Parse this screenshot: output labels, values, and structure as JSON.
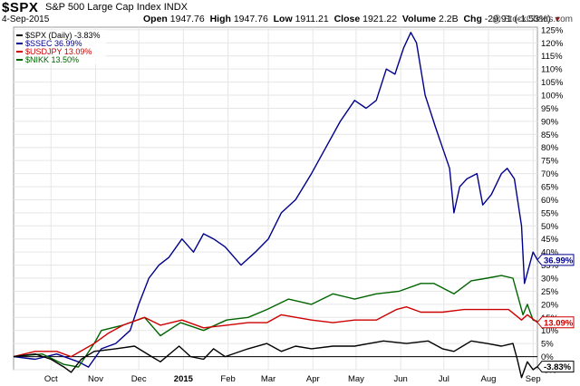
{
  "header": {
    "symbol": "$SPX",
    "name": "S&P 500 Large Cap Index",
    "exchange": "INDX",
    "date": "4-Sep-2015",
    "open_label": "Open",
    "open": "1947.76",
    "high_label": "High",
    "high": "1947.76",
    "low_label": "Low",
    "low": "1911.21",
    "close_label": "Close",
    "close": "1921.22",
    "volume_label": "Volume",
    "volume": "2.2B",
    "chg_label": "Chg",
    "chg": "-29.91 (-1.53%)",
    "logo": "@ StockCharts.com"
  },
  "legend": [
    {
      "label": "$SPX (Daily) -3.83%",
      "color": "#000000"
    },
    {
      "label": "$SSEC 36.99%",
      "color": "#00008b"
    },
    {
      "label": "$USDJPY 13.09%",
      "color": "#cc0000"
    },
    {
      "label": "$NIKK 13.50%",
      "color": "#006400"
    }
  ],
  "badges": [
    {
      "text": "36.99%",
      "value": 36.99,
      "color": "#00008b"
    },
    {
      "text": "13.09%",
      "value": 13.09,
      "color": "#cc0000"
    },
    {
      "text": "-3.83%",
      "value": -3.83,
      "color": "#000000"
    }
  ],
  "chart_data": {
    "type": "line",
    "ylim": [
      -5,
      126
    ],
    "y_ticks": [
      -5,
      0,
      5,
      10,
      15,
      20,
      25,
      30,
      35,
      40,
      45,
      50,
      55,
      60,
      65,
      70,
      75,
      80,
      85,
      90,
      95,
      100,
      105,
      110,
      115,
      120,
      125
    ],
    "x_range": [
      "2014-09-05",
      "2015-09-04"
    ],
    "x_ticks": [
      {
        "date": "2014-10-01",
        "label": "Oct",
        "bold": false
      },
      {
        "date": "2014-11-01",
        "label": "Nov",
        "bold": false
      },
      {
        "date": "2014-12-01",
        "label": "Dec",
        "bold": false
      },
      {
        "date": "2015-01-01",
        "label": "2015",
        "bold": true
      },
      {
        "date": "2015-02-01",
        "label": "Feb",
        "bold": false
      },
      {
        "date": "2015-03-01",
        "label": "Mar",
        "bold": false
      },
      {
        "date": "2015-04-01",
        "label": "Apr",
        "bold": false
      },
      {
        "date": "2015-05-01",
        "label": "May",
        "bold": false
      },
      {
        "date": "2015-06-01",
        "label": "Jun",
        "bold": false
      },
      {
        "date": "2015-07-01",
        "label": "Jul",
        "bold": false
      },
      {
        "date": "2015-08-01",
        "label": "Aug",
        "bold": false
      },
      {
        "date": "2015-09-01",
        "label": "Sep",
        "bold": false
      }
    ],
    "series": [
      {
        "name": "$SSEC",
        "color": "#00008b",
        "points": [
          [
            "2014-09-05",
            0
          ],
          [
            "2014-09-20",
            -1
          ],
          [
            "2014-10-05",
            1
          ],
          [
            "2014-10-20",
            -2
          ],
          [
            "2014-10-27",
            -4
          ],
          [
            "2014-11-05",
            3
          ],
          [
            "2014-11-15",
            5
          ],
          [
            "2014-11-25",
            10
          ],
          [
            "2014-12-01",
            20
          ],
          [
            "2014-12-08",
            30
          ],
          [
            "2014-12-15",
            35
          ],
          [
            "2014-12-22",
            38
          ],
          [
            "2014-12-31",
            45
          ],
          [
            "2015-01-08",
            40
          ],
          [
            "2015-01-15",
            47
          ],
          [
            "2015-01-22",
            45
          ],
          [
            "2015-01-30",
            42
          ],
          [
            "2015-02-10",
            35
          ],
          [
            "2015-02-20",
            40
          ],
          [
            "2015-03-01",
            45
          ],
          [
            "2015-03-10",
            55
          ],
          [
            "2015-03-20",
            60
          ],
          [
            "2015-03-31",
            70
          ],
          [
            "2015-04-10",
            80
          ],
          [
            "2015-04-20",
            90
          ],
          [
            "2015-04-30",
            98
          ],
          [
            "2015-05-08",
            95
          ],
          [
            "2015-05-15",
            98
          ],
          [
            "2015-05-22",
            110
          ],
          [
            "2015-05-28",
            108
          ],
          [
            "2015-06-03",
            118
          ],
          [
            "2015-06-08",
            124
          ],
          [
            "2015-06-12",
            120
          ],
          [
            "2015-06-18",
            100
          ],
          [
            "2015-06-25",
            88
          ],
          [
            "2015-06-30",
            80
          ],
          [
            "2015-07-05",
            72
          ],
          [
            "2015-07-08",
            55
          ],
          [
            "2015-07-12",
            65
          ],
          [
            "2015-07-17",
            68
          ],
          [
            "2015-07-24",
            70
          ],
          [
            "2015-07-28",
            58
          ],
          [
            "2015-08-03",
            62
          ],
          [
            "2015-08-10",
            70
          ],
          [
            "2015-08-14",
            72
          ],
          [
            "2015-08-19",
            68
          ],
          [
            "2015-08-24",
            50
          ],
          [
            "2015-08-26",
            28
          ],
          [
            "2015-08-28",
            32
          ],
          [
            "2015-09-01",
            40
          ],
          [
            "2015-09-04",
            36.99
          ]
        ]
      },
      {
        "name": "$NIKK",
        "color": "#006400",
        "points": [
          [
            "2014-09-05",
            0
          ],
          [
            "2014-09-25",
            1
          ],
          [
            "2014-10-10",
            -3
          ],
          [
            "2014-10-20",
            -4
          ],
          [
            "2014-10-31",
            5
          ],
          [
            "2014-11-05",
            10
          ],
          [
            "2014-11-20",
            12
          ],
          [
            "2014-12-05",
            15
          ],
          [
            "2014-12-16",
            8
          ],
          [
            "2014-12-30",
            13
          ],
          [
            "2015-01-15",
            10
          ],
          [
            "2015-01-31",
            14
          ],
          [
            "2015-02-15",
            15
          ],
          [
            "2015-02-28",
            18
          ],
          [
            "2015-03-15",
            22
          ],
          [
            "2015-03-31",
            20
          ],
          [
            "2015-04-15",
            24
          ],
          [
            "2015-04-30",
            22
          ],
          [
            "2015-05-15",
            24
          ],
          [
            "2015-05-31",
            25
          ],
          [
            "2015-06-15",
            28
          ],
          [
            "2015-06-24",
            28
          ],
          [
            "2015-07-08",
            24
          ],
          [
            "2015-07-20",
            29
          ],
          [
            "2015-07-31",
            30
          ],
          [
            "2015-08-10",
            31
          ],
          [
            "2015-08-18",
            30
          ],
          [
            "2015-08-25",
            16
          ],
          [
            "2015-08-28",
            20
          ],
          [
            "2015-09-01",
            14
          ],
          [
            "2015-09-04",
            13.5
          ]
        ]
      },
      {
        "name": "$USDJPY",
        "color": "#cc0000",
        "points": [
          [
            "2014-09-05",
            0
          ],
          [
            "2014-09-20",
            2
          ],
          [
            "2014-10-05",
            2
          ],
          [
            "2014-10-15",
            0
          ],
          [
            "2014-10-31",
            5
          ],
          [
            "2014-11-10",
            9
          ],
          [
            "2014-11-20",
            12
          ],
          [
            "2014-12-05",
            15
          ],
          [
            "2014-12-16",
            12
          ],
          [
            "2014-12-31",
            14
          ],
          [
            "2015-01-15",
            11
          ],
          [
            "2015-01-31",
            12
          ],
          [
            "2015-02-15",
            13
          ],
          [
            "2015-02-28",
            13
          ],
          [
            "2015-03-10",
            16
          ],
          [
            "2015-03-31",
            14
          ],
          [
            "2015-04-15",
            13
          ],
          [
            "2015-04-30",
            14
          ],
          [
            "2015-05-15",
            14
          ],
          [
            "2015-05-29",
            18
          ],
          [
            "2015-06-05",
            19
          ],
          [
            "2015-06-15",
            17
          ],
          [
            "2015-06-30",
            17
          ],
          [
            "2015-07-15",
            18
          ],
          [
            "2015-07-31",
            18
          ],
          [
            "2015-08-15",
            18
          ],
          [
            "2015-08-24",
            14
          ],
          [
            "2015-08-28",
            16
          ],
          [
            "2015-09-04",
            13.09
          ]
        ]
      },
      {
        "name": "$SPX",
        "color": "#000000",
        "points": [
          [
            "2014-09-05",
            0
          ],
          [
            "2014-09-20",
            1
          ],
          [
            "2014-10-01",
            -1
          ],
          [
            "2014-10-10",
            -4
          ],
          [
            "2014-10-15",
            -6
          ],
          [
            "2014-10-22",
            -1
          ],
          [
            "2014-10-31",
            2
          ],
          [
            "2014-11-15",
            3
          ],
          [
            "2014-11-28",
            4
          ],
          [
            "2014-12-10",
            0
          ],
          [
            "2014-12-16",
            -2
          ],
          [
            "2014-12-29",
            4
          ],
          [
            "2015-01-06",
            0
          ],
          [
            "2015-01-15",
            -1
          ],
          [
            "2015-01-22",
            3
          ],
          [
            "2015-01-30",
            0
          ],
          [
            "2015-02-15",
            3
          ],
          [
            "2015-02-28",
            5
          ],
          [
            "2015-03-10",
            2
          ],
          [
            "2015-03-20",
            4
          ],
          [
            "2015-03-31",
            3
          ],
          [
            "2015-04-15",
            4
          ],
          [
            "2015-04-30",
            4
          ],
          [
            "2015-05-20",
            6
          ],
          [
            "2015-06-05",
            5
          ],
          [
            "2015-06-20",
            6
          ],
          [
            "2015-06-30",
            3
          ],
          [
            "2015-07-08",
            2
          ],
          [
            "2015-07-20",
            6
          ],
          [
            "2015-07-31",
            5
          ],
          [
            "2015-08-10",
            4
          ],
          [
            "2015-08-18",
            5
          ],
          [
            "2015-08-21",
            -1
          ],
          [
            "2015-08-24",
            -8
          ],
          [
            "2015-08-28",
            -2
          ],
          [
            "2015-09-01",
            -5
          ],
          [
            "2015-09-04",
            -3.83
          ]
        ]
      }
    ]
  }
}
